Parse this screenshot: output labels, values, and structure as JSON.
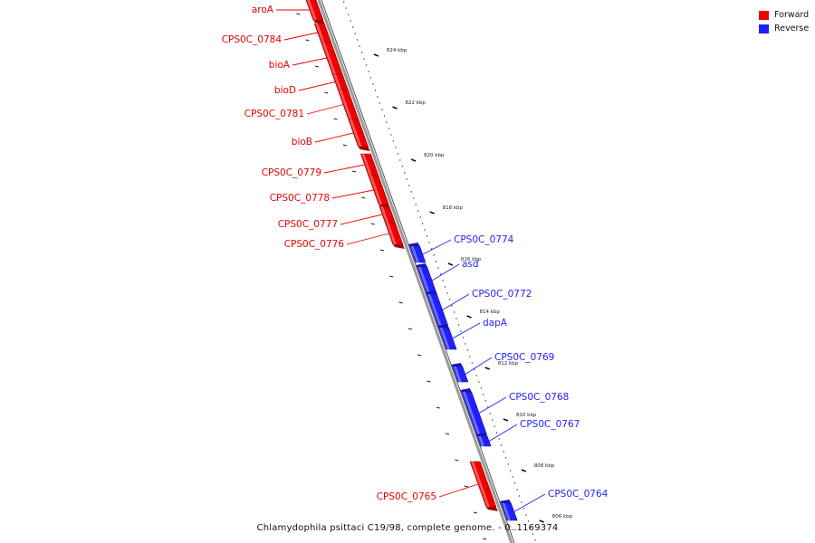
{
  "legend": {
    "forward_label": "Forward",
    "reverse_label": "Reverse",
    "forward_color": "#ee0000",
    "reverse_color": "#1f1fff"
  },
  "caption": "Chlamydophila psittaci C19/98, complete genome. - 0..1169374",
  "ruler_ticks": [
    "824 kbp",
    "822 kbp",
    "820 kbp",
    "818 kbp",
    "816 kbp",
    "814 kbp",
    "812 kbp",
    "810 kbp",
    "808 kbp",
    "806 kbp"
  ],
  "genes": [
    {
      "name": "aroA",
      "strand": "forward"
    },
    {
      "name": "CPS0C_0784",
      "strand": "forward"
    },
    {
      "name": "bioA",
      "strand": "forward"
    },
    {
      "name": "bioD",
      "strand": "forward"
    },
    {
      "name": "CPS0C_0781",
      "strand": "forward"
    },
    {
      "name": "bioB",
      "strand": "forward"
    },
    {
      "name": "CPS0C_0779",
      "strand": "forward"
    },
    {
      "name": "CPS0C_0778",
      "strand": "forward"
    },
    {
      "name": "CPS0C_0777",
      "strand": "forward"
    },
    {
      "name": "CPS0C_0776",
      "strand": "forward"
    },
    {
      "name": "CPS0C_0774",
      "strand": "reverse"
    },
    {
      "name": "asd",
      "strand": "reverse"
    },
    {
      "name": "CPS0C_0772",
      "strand": "reverse"
    },
    {
      "name": "dapA",
      "strand": "reverse"
    },
    {
      "name": "CPS0C_0769",
      "strand": "reverse"
    },
    {
      "name": "CPS0C_0768",
      "strand": "reverse"
    },
    {
      "name": "CPS0C_0767",
      "strand": "reverse"
    },
    {
      "name": "CPS0C_0765",
      "strand": "forward"
    },
    {
      "name": "CPS0C_0764",
      "strand": "reverse"
    }
  ]
}
